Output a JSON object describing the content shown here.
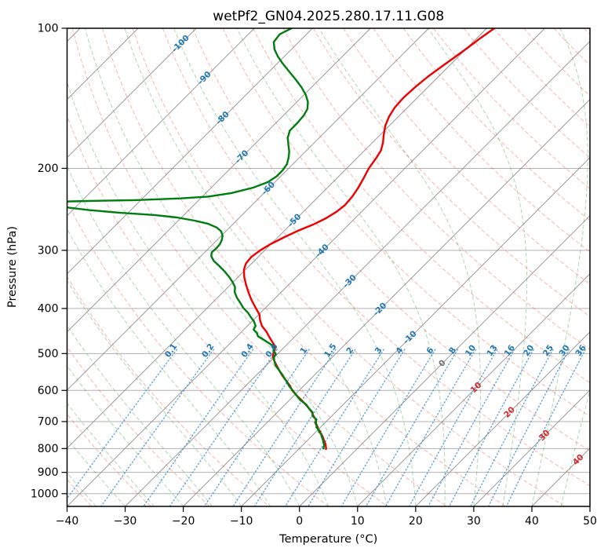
{
  "title": "wetPf2_GN04.2025.280.17.11.G08",
  "axes": {
    "xlabel": "Temperature (°C)",
    "ylabel": "Pressure (hPa)",
    "x_ticks": [
      -40,
      -30,
      -20,
      -10,
      0,
      10,
      20,
      30,
      40,
      50
    ],
    "y_ticks": [
      100,
      200,
      300,
      400,
      500,
      600,
      700,
      800,
      900,
      1000
    ],
    "x_range_c": [
      -40,
      50
    ],
    "p_range_hpa": [
      100,
      1065
    ]
  },
  "chart_data": {
    "type": "line",
    "subtype": "skewT-logP sounding",
    "skew_degrees": 45,
    "grid": true,
    "background": {
      "isotherms": {
        "min": -120,
        "max": 50,
        "step": 10,
        "color": "#8f8f8f"
      },
      "dry_adiabats": {
        "min": -60,
        "max": 200,
        "step": 10,
        "color": "#f0705a"
      },
      "moist_adiabats": {
        "min": -60,
        "max": 55,
        "step": 5,
        "color": "#3fa045"
      },
      "mixing_ratio_lines": {
        "values_g_kg": [
          0.1,
          0.2,
          0.4,
          0.6,
          1,
          1.5,
          2,
          3,
          4,
          6,
          8,
          10,
          13,
          16,
          20,
          25,
          30,
          36
        ],
        "color": "#3d8fd1",
        "label_color": "#1f77b4",
        "label_p": 502,
        "top_p": 490
      }
    },
    "isotherm_labels": [
      {
        "t": -100,
        "p": 108,
        "color": "#1f77b4"
      },
      {
        "t": -90,
        "p": 128,
        "color": "#1f77b4"
      },
      {
        "t": -80,
        "p": 156,
        "color": "#1f77b4"
      },
      {
        "t": -70,
        "p": 189,
        "color": "#1f77b4"
      },
      {
        "t": -60,
        "p": 221,
        "color": "#1f77b4"
      },
      {
        "t": -50,
        "p": 259,
        "color": "#1f77b4"
      },
      {
        "t": -40,
        "p": 301,
        "color": "#1f77b4"
      },
      {
        "t": -30,
        "p": 350,
        "color": "#1f77b4"
      },
      {
        "t": -20,
        "p": 402,
        "color": "#1f77b4"
      },
      {
        "t": -10,
        "p": 462,
        "color": "#1f77b4"
      },
      {
        "t": 0,
        "p": 525,
        "color": "#707070"
      },
      {
        "t": 10,
        "p": 592,
        "color": "#d62728"
      },
      {
        "t": 20,
        "p": 669,
        "color": "#d62728"
      },
      {
        "t": 30,
        "p": 750,
        "color": "#d62728"
      },
      {
        "t": 40,
        "p": 846,
        "color": "#d62728"
      }
    ],
    "series": [
      {
        "name": "temperature",
        "color": "#ee0000",
        "width": 2.4,
        "points": [
          [
            100,
            -48.7
          ],
          [
            105,
            -49.4
          ],
          [
            110,
            -49.9
          ],
          [
            115,
            -50.5
          ],
          [
            121,
            -51.2
          ],
          [
            127,
            -51.8
          ],
          [
            134,
            -52.2
          ],
          [
            141,
            -52.4
          ],
          [
            148,
            -52.2
          ],
          [
            155,
            -51.6
          ],
          [
            162,
            -50.7
          ],
          [
            170,
            -49.3
          ],
          [
            176,
            -48.2
          ],
          [
            183,
            -47.2
          ],
          [
            190,
            -46.7
          ],
          [
            200,
            -46.2
          ],
          [
            210,
            -45.4
          ],
          [
            220,
            -44.7
          ],
          [
            230,
            -44.2
          ],
          [
            240,
            -44.0
          ],
          [
            248,
            -44.3
          ],
          [
            256,
            -45.0
          ],
          [
            264,
            -46.1
          ],
          [
            272,
            -47.6
          ],
          [
            281,
            -48.9
          ],
          [
            291,
            -50.1
          ],
          [
            300,
            -50.8
          ],
          [
            310,
            -51.2
          ],
          [
            320,
            -51.0
          ],
          [
            330,
            -50.3
          ],
          [
            342,
            -49.0
          ],
          [
            355,
            -47.4
          ],
          [
            370,
            -45.5
          ],
          [
            384,
            -43.7
          ],
          [
            398,
            -41.8
          ],
          [
            412,
            -39.9
          ],
          [
            424,
            -38.8
          ],
          [
            436,
            -37.5
          ],
          [
            449,
            -35.7
          ],
          [
            460,
            -34.4
          ],
          [
            470,
            -33.2
          ],
          [
            480,
            -32.0
          ],
          [
            490,
            -31.2
          ],
          [
            500,
            -30.8
          ],
          [
            508,
            -30.3
          ],
          [
            517,
            -29.5
          ],
          [
            530,
            -28.2
          ],
          [
            544,
            -26.8
          ],
          [
            558,
            -25.4
          ],
          [
            572,
            -23.9
          ],
          [
            586,
            -22.4
          ],
          [
            600,
            -21.2
          ],
          [
            614,
            -19.7
          ],
          [
            628,
            -18.1
          ],
          [
            642,
            -16.6
          ],
          [
            655,
            -15.3
          ],
          [
            668,
            -14.1
          ],
          [
            680,
            -13.2
          ],
          [
            692,
            -12.2
          ],
          [
            703,
            -11.6
          ],
          [
            711,
            -11.2
          ],
          [
            719,
            -10.5
          ],
          [
            727,
            -10.1
          ],
          [
            735,
            -9.3
          ],
          [
            743,
            -8.9
          ],
          [
            751,
            -8.2
          ],
          [
            759,
            -7.7
          ],
          [
            767,
            -7.2
          ],
          [
            775,
            -6.7
          ],
          [
            783,
            -6.2
          ],
          [
            791,
            -5.8
          ],
          [
            797,
            -5.5
          ],
          [
            802,
            -5.3
          ]
        ]
      },
      {
        "name": "dewpoint",
        "color": "#007d10",
        "width": 2.4,
        "points": [
          [
            100,
            -83.6
          ],
          [
            103,
            -84.6
          ],
          [
            107,
            -84.3
          ],
          [
            111,
            -82.9
          ],
          [
            115,
            -81.1
          ],
          [
            119,
            -79.1
          ],
          [
            124,
            -76.5
          ],
          [
            129,
            -74.0
          ],
          [
            134,
            -71.7
          ],
          [
            139,
            -69.7
          ],
          [
            144,
            -68.1
          ],
          [
            149,
            -67.0
          ],
          [
            154,
            -66.5
          ],
          [
            160,
            -66.3
          ],
          [
            166,
            -66.3
          ],
          [
            172,
            -65.4
          ],
          [
            178,
            -64.1
          ],
          [
            184,
            -62.8
          ],
          [
            190,
            -61.8
          ],
          [
            196,
            -61.0
          ],
          [
            202,
            -60.7
          ],
          [
            208,
            -60.7
          ],
          [
            214,
            -61.2
          ],
          [
            220,
            -62.8
          ],
          [
            226,
            -65.6
          ],
          [
            230,
            -69.0
          ],
          [
            232,
            -73.5
          ],
          [
            234,
            -81.0
          ],
          [
            235,
            -89.0
          ],
          [
            236,
            -95.0
          ],
          [
            238,
            -95.8
          ],
          [
            240,
            -93.6
          ],
          [
            243,
            -91.0
          ],
          [
            246,
            -87.0
          ],
          [
            249,
            -81.5
          ],
          [
            252,
            -75.0
          ],
          [
            255,
            -70.8
          ],
          [
            259,
            -67.2
          ],
          [
            263,
            -64.4
          ],
          [
            268,
            -62.2
          ],
          [
            273,
            -60.8
          ],
          [
            279,
            -59.8
          ],
          [
            285,
            -59.2
          ],
          [
            291,
            -58.8
          ],
          [
            297,
            -58.7
          ],
          [
            303,
            -58.8
          ],
          [
            309,
            -58.2
          ],
          [
            316,
            -57.0
          ],
          [
            324,
            -55.2
          ],
          [
            333,
            -53.3
          ],
          [
            342,
            -51.6
          ],
          [
            351,
            -50.1
          ],
          [
            360,
            -48.8
          ],
          [
            369,
            -48.0
          ],
          [
            379,
            -46.7
          ],
          [
            389,
            -45.2
          ],
          [
            399,
            -43.8
          ],
          [
            409,
            -42.1
          ],
          [
            417,
            -41.0
          ],
          [
            426,
            -39.7
          ],
          [
            436,
            -38.6
          ],
          [
            444,
            -38.3
          ],
          [
            452,
            -37.1
          ],
          [
            459,
            -36.4
          ],
          [
            467,
            -34.8
          ],
          [
            475,
            -33.3
          ],
          [
            483,
            -31.9
          ],
          [
            492,
            -31.3
          ],
          [
            501,
            -30.3
          ],
          [
            510,
            -30.0
          ],
          [
            519,
            -29.3
          ],
          [
            531,
            -28.3
          ],
          [
            545,
            -26.7
          ],
          [
            559,
            -25.2
          ],
          [
            573,
            -23.8
          ],
          [
            587,
            -22.5
          ],
          [
            601,
            -21.0
          ],
          [
            615,
            -19.6
          ],
          [
            629,
            -18.2
          ],
          [
            643,
            -16.4
          ],
          [
            656,
            -15.2
          ],
          [
            669,
            -13.9
          ],
          [
            681,
            -13.3
          ],
          [
            693,
            -12.0
          ],
          [
            704,
            -11.7
          ],
          [
            712,
            -11.0
          ],
          [
            720,
            -10.7
          ],
          [
            728,
            -9.9
          ],
          [
            736,
            -9.5
          ],
          [
            744,
            -8.7
          ],
          [
            752,
            -8.3
          ],
          [
            760,
            -7.8
          ],
          [
            768,
            -7.3
          ],
          [
            776,
            -6.9
          ],
          [
            784,
            -6.4
          ],
          [
            792,
            -6.1
          ],
          [
            798,
            -5.9
          ],
          [
            800,
            -5.8
          ]
        ]
      }
    ],
    "styles": {
      "grid_color": "#b0b0b0",
      "frame_color": "#000000",
      "title_color": "#000000",
      "tick_color": "#000000"
    }
  }
}
